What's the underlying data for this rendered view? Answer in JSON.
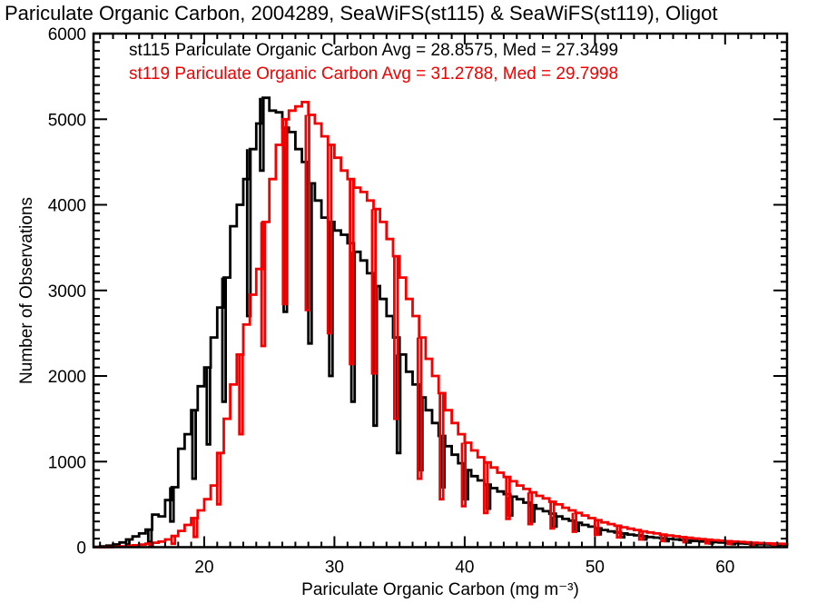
{
  "title": "Pariculate Organic Carbon, 2004289, SeaWiFS(st115) & SeaWiFS(st119), Oligot",
  "legend": [
    {
      "label": "st115 Pariculate Organic Carbon Avg = 28.8575, Med = 27.3499",
      "color": "#000000"
    },
    {
      "label": "st119 Pariculate Organic Carbon Avg = 31.2788, Med = 29.7998",
      "color": "#f40000"
    }
  ],
  "colors": {
    "background": "#ffffff",
    "frame": "#000000",
    "text": "#000000"
  },
  "chart_data": {
    "type": "bar",
    "subtype": "step-histogram-outline",
    "title": "Pariculate Organic Carbon, 2004289, SeaWiFS(st115) & SeaWiFS(st119), Oligot",
    "xlabel": "Pariculate Organic Carbon (mg m⁻³)",
    "ylabel": "Number of Observations",
    "xlim": [
      11.5,
      64.75
    ],
    "ylim": [
      0,
      6000
    ],
    "x_major_ticks": [
      20,
      30,
      40,
      50,
      60
    ],
    "x_minor_step": 1,
    "y_major_ticks": [
      0,
      1000,
      2000,
      3000,
      4000,
      5000,
      6000
    ],
    "y_minor_step": 100,
    "grid": false,
    "legend_position": "top-left-inside",
    "bin_start": 11.5,
    "bin_width": 0.5,
    "spike_bin_width": 0.25,
    "series": [
      {
        "name": "st115",
        "source": "SeaWiFS(st115)",
        "color": "#000000",
        "avg": 28.8575,
        "med": 27.3499,
        "counts": [
          4,
          8,
          18,
          32,
          55,
          90,
          125,
          160,
          205,
          380,
          360,
          550,
          700,
          1150,
          1320,
          1600,
          1880,
          2100,
          2450,
          2800,
          3150,
          3750,
          4000,
          4300,
          4650,
          4950,
          5250,
          5100,
          5080,
          4900,
          4850,
          4650,
          4500,
          4250,
          4050,
          3850,
          3800,
          3700,
          3650,
          3550,
          3450,
          3350,
          3200,
          3050,
          2900,
          2700,
          2450,
          2250,
          2050,
          1900,
          1750,
          1600,
          1450,
          1300,
          1180,
          1080,
          980,
          900,
          830,
          780,
          730,
          690,
          650,
          620,
          590,
          560,
          520,
          490,
          450,
          420,
          390,
          360,
          330,
          310,
          285,
          260,
          240,
          220,
          200,
          185,
          172,
          160,
          148,
          138,
          128,
          119,
          111,
          104,
          97,
          90,
          84,
          78,
          72,
          67,
          62,
          58,
          54,
          50,
          47,
          44,
          41,
          38,
          35,
          33,
          31,
          29,
          27,
          25
        ],
        "spikes": [
          [
            14.0,
            30
          ],
          [
            15.7,
            60
          ],
          [
            17.4,
            300
          ],
          [
            19.1,
            800
          ],
          [
            20.2,
            1200
          ],
          [
            21.4,
            1700
          ],
          [
            23.3,
            2700
          ],
          [
            24.3,
            4400
          ],
          [
            26.1,
            2750
          ],
          [
            28.0,
            2380
          ],
          [
            29.6,
            2000
          ],
          [
            31.3,
            1700
          ],
          [
            33.0,
            1420
          ],
          [
            34.8,
            1100
          ],
          [
            36.5,
            900
          ],
          [
            38.2,
            700
          ],
          [
            40.0,
            560
          ],
          [
            41.7,
            450
          ],
          [
            43.4,
            370
          ],
          [
            45.1,
            300
          ],
          [
            46.8,
            240
          ],
          [
            48.5,
            190
          ],
          [
            50.2,
            150
          ],
          [
            52.0,
            115
          ],
          [
            53.7,
            90
          ],
          [
            55.4,
            70
          ],
          [
            57.1,
            55
          ],
          [
            58.8,
            45
          ],
          [
            60.5,
            35
          ],
          [
            62.2,
            28
          ],
          [
            63.9,
            22
          ]
        ]
      },
      {
        "name": "st119",
        "source": "SeaWiFS(st119)",
        "color": "#f40000",
        "avg": 31.2788,
        "med": 29.7998,
        "counts": [
          0,
          0,
          2,
          4,
          8,
          14,
          22,
          30,
          40,
          52,
          65,
          90,
          130,
          190,
          260,
          340,
          430,
          560,
          720,
          1100,
          1500,
          1900,
          2250,
          2600,
          2950,
          3250,
          3800,
          4300,
          4700,
          5000,
          5100,
          5150,
          5200,
          5050,
          4950,
          4800,
          4700,
          4550,
          4400,
          4300,
          4200,
          4150,
          4050,
          3950,
          3800,
          3600,
          3400,
          3150,
          2900,
          2700,
          2450,
          2200,
          2000,
          1800,
          1600,
          1450,
          1320,
          1220,
          1130,
          1050,
          990,
          930,
          870,
          820,
          770,
          720,
          680,
          640,
          600,
          570,
          530,
          500,
          460,
          430,
          400,
          370,
          340,
          315,
          290,
          270,
          250,
          232,
          215,
          200,
          185,
          172,
          160,
          148,
          137,
          127,
          118,
          109,
          101,
          94,
          87,
          81,
          75,
          70,
          65,
          60,
          56,
          52,
          48,
          45,
          42,
          39,
          36,
          34
        ],
        "spikes": [
          [
            15.8,
            10
          ],
          [
            17.5,
            40
          ],
          [
            19.2,
            120
          ],
          [
            21.0,
            500
          ],
          [
            22.7,
            1320
          ],
          [
            24.4,
            2350
          ],
          [
            26.05,
            2840
          ],
          [
            27.8,
            2770
          ],
          [
            29.5,
            2500
          ],
          [
            31.2,
            2140
          ],
          [
            32.9,
            2030
          ],
          [
            34.6,
            1500
          ],
          [
            36.4,
            800
          ],
          [
            38.1,
            560
          ],
          [
            39.8,
            480
          ],
          [
            41.5,
            400
          ],
          [
            43.2,
            330
          ],
          [
            44.9,
            270
          ],
          [
            46.6,
            220
          ],
          [
            48.3,
            180
          ],
          [
            50.0,
            145
          ],
          [
            51.7,
            115
          ],
          [
            53.4,
            90
          ],
          [
            55.1,
            72
          ],
          [
            56.8,
            58
          ],
          [
            58.5,
            46
          ],
          [
            60.2,
            37
          ],
          [
            61.9,
            30
          ],
          [
            63.6,
            24
          ]
        ]
      }
    ]
  }
}
